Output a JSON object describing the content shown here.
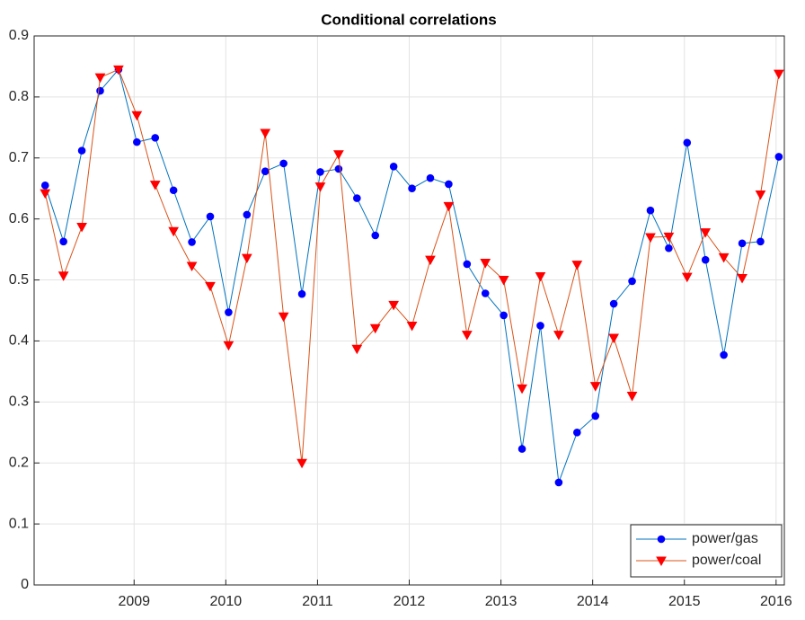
{
  "chart_data": {
    "type": "line",
    "title": "Conditional correlations",
    "x": [
      2008.03,
      2008.23,
      2008.43,
      2008.63,
      2008.83,
      2009.03,
      2009.23,
      2009.43,
      2009.63,
      2009.83,
      2010.03,
      2010.23,
      2010.43,
      2010.63,
      2010.83,
      2011.03,
      2011.23,
      2011.43,
      2011.63,
      2011.83,
      2012.03,
      2012.23,
      2012.43,
      2012.63,
      2012.83,
      2013.03,
      2013.23,
      2013.43,
      2013.63,
      2013.83,
      2014.03,
      2014.23,
      2014.43,
      2014.63,
      2014.83,
      2015.03,
      2015.23,
      2015.43,
      2015.63,
      2015.83,
      2016.03
    ],
    "series": [
      {
        "name": "power/gas",
        "color": "#0072bd",
        "marker": "circle",
        "marker_color": "#0000ff",
        "values": [
          0.655,
          0.563,
          0.712,
          0.81,
          0.845,
          0.726,
          0.733,
          0.647,
          0.562,
          0.604,
          0.447,
          0.607,
          0.678,
          0.691,
          0.477,
          0.677,
          0.682,
          0.634,
          0.573,
          0.686,
          0.65,
          0.667,
          0.657,
          0.526,
          0.478,
          0.442,
          0.223,
          0.425,
          0.168,
          0.25,
          0.277,
          0.461,
          0.498,
          0.614,
          0.552,
          0.725,
          0.533,
          0.377,
          0.56,
          0.563,
          0.702
        ]
      },
      {
        "name": "power/coal",
        "color": "#d95319",
        "marker": "triangle-down",
        "marker_color": "#ff0000",
        "values": [
          0.642,
          0.507,
          0.587,
          0.832,
          0.845,
          0.77,
          0.656,
          0.58,
          0.523,
          0.49,
          0.393,
          0.536,
          0.741,
          0.44,
          0.2,
          0.653,
          0.706,
          0.387,
          0.421,
          0.459,
          0.425,
          0.533,
          0.621,
          0.41,
          0.528,
          0.5,
          0.322,
          0.506,
          0.41,
          0.525,
          0.326,
          0.405,
          0.31,
          0.57,
          0.571,
          0.505,
          0.578,
          0.537,
          0.503,
          0.64,
          0.838
        ]
      }
    ],
    "xlim": [
      2007.91,
      2016.09
    ],
    "xticks": [
      2009,
      2010,
      2011,
      2012,
      2013,
      2014,
      2015,
      2016
    ],
    "ylim": [
      0,
      0.9
    ],
    "yticks": [
      0,
      0.1,
      0.2,
      0.3,
      0.4,
      0.5,
      0.6,
      0.7,
      0.8,
      0.9
    ],
    "grid": true,
    "legend": "southeast"
  }
}
